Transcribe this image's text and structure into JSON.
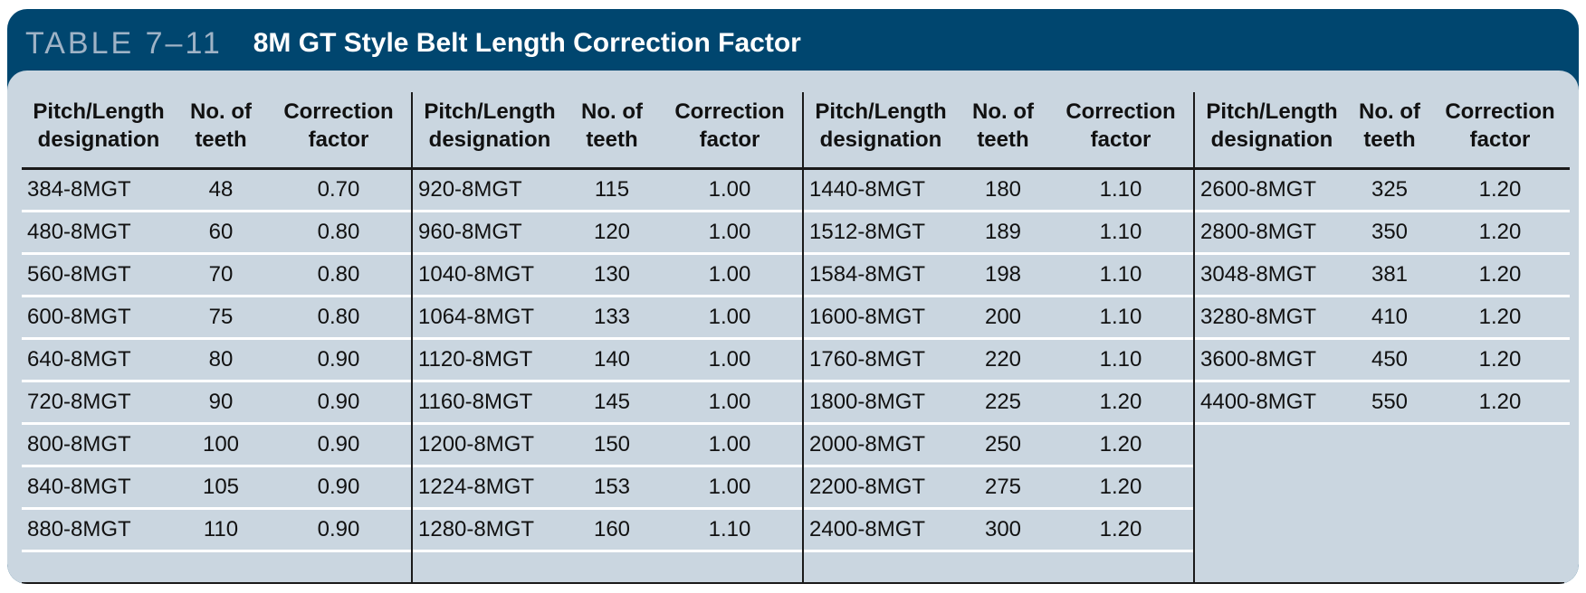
{
  "title": {
    "number": "TABLE 7–11",
    "text": "8M GT Style Belt Length Correction Factor"
  },
  "headers": {
    "designation": "Pitch/Length\ndesignation",
    "teeth": "No. of\nteeth",
    "factor": "Correction\nfactor"
  },
  "groups": [
    [
      [
        "384-8MGT",
        "48",
        "0.70"
      ],
      [
        "480-8MGT",
        "60",
        "0.80"
      ],
      [
        "560-8MGT",
        "70",
        "0.80"
      ],
      [
        "600-8MGT",
        "75",
        "0.80"
      ],
      [
        "640-8MGT",
        "80",
        "0.90"
      ],
      [
        "720-8MGT",
        "90",
        "0.90"
      ],
      [
        "800-8MGT",
        "100",
        "0.90"
      ],
      [
        "840-8MGT",
        "105",
        "0.90"
      ],
      [
        "880-8MGT",
        "110",
        "0.90"
      ]
    ],
    [
      [
        "920-8MGT",
        "115",
        "1.00"
      ],
      [
        "960-8MGT",
        "120",
        "1.00"
      ],
      [
        "1040-8MGT",
        "130",
        "1.00"
      ],
      [
        "1064-8MGT",
        "133",
        "1.00"
      ],
      [
        "1120-8MGT",
        "140",
        "1.00"
      ],
      [
        "1160-8MGT",
        "145",
        "1.00"
      ],
      [
        "1200-8MGT",
        "150",
        "1.00"
      ],
      [
        "1224-8MGT",
        "153",
        "1.00"
      ],
      [
        "1280-8MGT",
        "160",
        "1.10"
      ]
    ],
    [
      [
        "1440-8MGT",
        "180",
        "1.10"
      ],
      [
        "1512-8MGT",
        "189",
        "1.10"
      ],
      [
        "1584-8MGT",
        "198",
        "1.10"
      ],
      [
        "1600-8MGT",
        "200",
        "1.10"
      ],
      [
        "1760-8MGT",
        "220",
        "1.10"
      ],
      [
        "1800-8MGT",
        "225",
        "1.20"
      ],
      [
        "2000-8MGT",
        "250",
        "1.20"
      ],
      [
        "2200-8MGT",
        "275",
        "1.20"
      ],
      [
        "2400-8MGT",
        "300",
        "1.20"
      ]
    ],
    [
      [
        "2600-8MGT",
        "325",
        "1.20"
      ],
      [
        "2800-8MGT",
        "350",
        "1.20"
      ],
      [
        "3048-8MGT",
        "381",
        "1.20"
      ],
      [
        "3280-8MGT",
        "410",
        "1.20"
      ],
      [
        "3600-8MGT",
        "450",
        "1.20"
      ],
      [
        "4400-8MGT",
        "550",
        "1.20"
      ]
    ]
  ],
  "colors": {
    "frame": "#00466f",
    "panel": "#cad6e0",
    "table_number": "#9fb3c6"
  }
}
